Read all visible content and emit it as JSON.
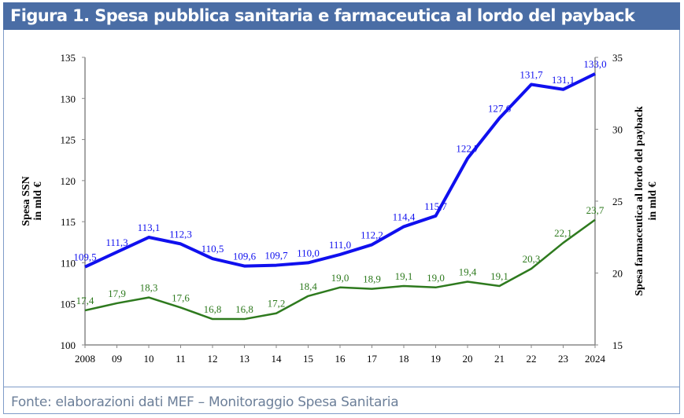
{
  "title": "Figura 1. Spesa pubblica sanitaria e farmaceutica al lordo del payback",
  "footer": "Fonte: elaborazioni dati MEF – Monitoraggio Spesa Sanitaria",
  "chart_data": {
    "type": "line",
    "title": "Figura 1. Spesa pubblica sanitaria e farmaceutica al lordo del payback",
    "categories": [
      "2008",
      "09",
      "10",
      "11",
      "12",
      "13",
      "14",
      "15",
      "16",
      "17",
      "18",
      "19",
      "20",
      "21",
      "22",
      "23",
      "2024"
    ],
    "ylabel": [
      "Spesa SSN",
      "in mld €"
    ],
    "y2label": [
      "Spesa farmaceutica al lordo del payback",
      "in mld €"
    ],
    "ylim": [
      100,
      135
    ],
    "yticks": [
      100,
      105,
      110,
      115,
      120,
      125,
      130,
      135
    ],
    "y2lim": [
      15,
      35
    ],
    "y2ticks": [
      15,
      20,
      25,
      30,
      35
    ],
    "grid": false,
    "series": [
      {
        "name": "Spesa SSN",
        "axis": "left",
        "color": "#1010ee",
        "values": [
          109.5,
          111.3,
          113.1,
          112.3,
          110.5,
          109.6,
          109.7,
          110.0,
          111.0,
          112.2,
          114.4,
          115.7,
          122.7,
          127.6,
          131.7,
          131.1,
          133.0
        ],
        "labels": [
          "109,5",
          "111,3",
          "113,1",
          "112,3",
          "110,5",
          "109,6",
          "109,7",
          "110,0",
          "111,0",
          "112,2",
          "114,4",
          "115,7",
          "122,7",
          "127,6",
          "131,7",
          "131,1",
          "133,0"
        ]
      },
      {
        "name": "Spesa farmaceutica al lordo del payback",
        "axis": "right",
        "color": "#2e7a1e",
        "values": [
          17.4,
          17.9,
          18.3,
          17.6,
          16.8,
          16.8,
          17.2,
          18.4,
          19.0,
          18.9,
          19.1,
          19.0,
          19.4,
          19.1,
          20.3,
          22.1,
          23.7
        ],
        "labels": [
          "17,4",
          "17,9",
          "18,3",
          "17,6",
          "16,8",
          "16,8",
          "17,2",
          "18,4",
          "19,0",
          "18,9",
          "19,1",
          "19,0",
          "19,4",
          "19,1",
          "20,3",
          "22,1",
          "23,7"
        ]
      }
    ]
  }
}
